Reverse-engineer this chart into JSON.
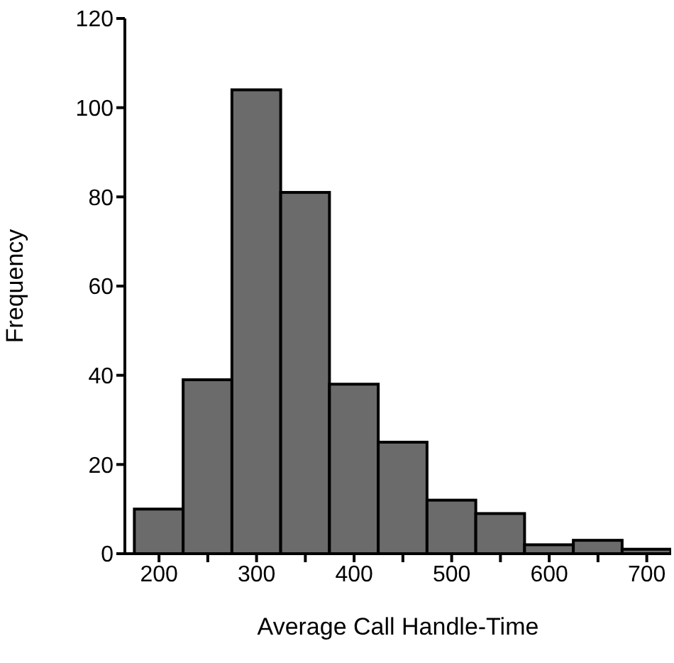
{
  "chart_data": {
    "type": "histogram",
    "xlabel": "Average Call Handle-Time",
    "ylabel": "Frequency",
    "bins": [
      175,
      225,
      275,
      325,
      375,
      425,
      475,
      525,
      575,
      625,
      675,
      725
    ],
    "values": [
      10,
      39,
      104,
      81,
      38,
      25,
      12,
      9,
      2,
      3,
      1
    ],
    "color": "#6b6b6b",
    "xlim": [
      165,
      725
    ],
    "xticks": [
      200,
      {
        "value": 250,
        "label": null
      },
      300,
      {
        "value": 350,
        "label": null
      },
      400,
      {
        "value": 450,
        "label": null
      },
      500,
      {
        "value": 550,
        "label": null
      },
      600,
      {
        "value": 650,
        "label": null
      },
      700
    ],
    "ylim": [
      0,
      120
    ],
    "yticks": [
      0,
      20,
      40,
      60,
      80,
      100,
      120
    ],
    "grid": false,
    "legend": false
  }
}
